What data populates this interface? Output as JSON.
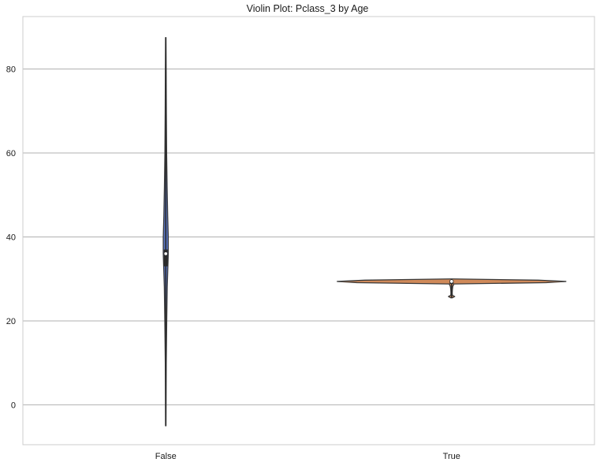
{
  "chart_data": {
    "type": "violin",
    "title": "Violin Plot: Pclass_3 by Age",
    "xlabel": "",
    "ylabel": "",
    "categories": [
      "False",
      "True"
    ],
    "ylim": [
      -9.5,
      92.5
    ],
    "yticks": [
      0,
      20,
      40,
      60,
      80
    ],
    "grid": "horizontal",
    "violins": [
      {
        "category": "False",
        "color": "#5975c4",
        "min": -5,
        "max": 87.5,
        "q1": 33,
        "median": 36,
        "q3": 37,
        "density": [
          [
            -5,
            0.2
          ],
          [
            0,
            0.3
          ],
          [
            10,
            0.5
          ],
          [
            20,
            1.0
          ],
          [
            28,
            1.5
          ],
          [
            33,
            2.2
          ],
          [
            36,
            2.6
          ],
          [
            40,
            2.6
          ],
          [
            45,
            2.0
          ],
          [
            52,
            1.4
          ],
          [
            60,
            0.9
          ],
          [
            70,
            0.6
          ],
          [
            80,
            0.4
          ],
          [
            87.5,
            0.2
          ]
        ]
      },
      {
        "category": "True",
        "color": "#d08a5a",
        "min": 25.5,
        "max": 30,
        "q1": 28.8,
        "median": 29.4,
        "q3": 29.7,
        "density": [
          [
            25.5,
            1.0
          ],
          [
            25.8,
            4.0
          ],
          [
            26.1,
            1.0
          ],
          [
            26.6,
            0.8
          ],
          [
            27.4,
            1.0
          ],
          [
            28.2,
            1.5
          ],
          [
            28.8,
            3.0
          ],
          [
            29.1,
            120.0
          ],
          [
            29.4,
            145.0
          ],
          [
            29.7,
            110.0
          ],
          [
            30.0,
            2.0
          ]
        ]
      }
    ]
  }
}
